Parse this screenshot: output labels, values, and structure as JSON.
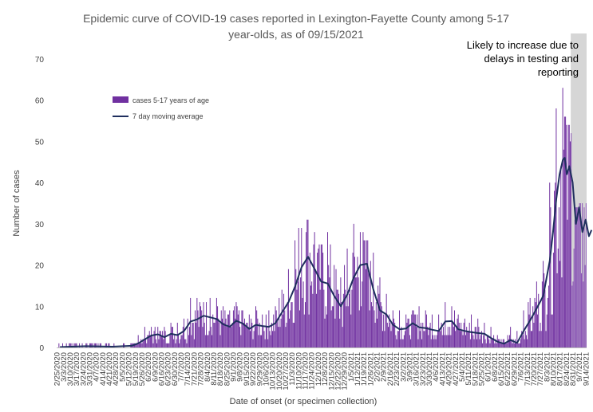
{
  "chart_data": {
    "type": "bar",
    "title": [
      "Epidemic curve of COVID-19 cases reported in Lexington-Fayette County among 5-17",
      "year-olds, as of 09/15/2021"
    ],
    "xlabel": "Date of onset (or specimen collection)",
    "ylabel": "Number of cases",
    "ylim": [
      0,
      70
    ],
    "yticks": [
      0,
      10,
      20,
      30,
      40,
      50,
      60,
      70
    ],
    "x_start": "2020-02-25",
    "x_end": "2021-09-14",
    "x_ticks": [
      "2/25/2020",
      "3/3/2020",
      "3/10/2020",
      "3/17/2020",
      "3/24/2020",
      "3/31/2020",
      "4/7/2020",
      "4/14/2020",
      "4/21/2020",
      "4/28/2020",
      "5/5/2020",
      "5/12/2020",
      "5/19/2020",
      "5/26/2020",
      "6/2/2020",
      "6/9/2020",
      "6/16/2020",
      "6/23/2020",
      "6/30/2020",
      "7/7/2020",
      "7/14/2020",
      "7/21/2020",
      "7/28/2020",
      "8/4/2020",
      "8/11/2020",
      "8/18/2020",
      "8/25/2020",
      "9/1/2020",
      "9/8/2020",
      "9/15/2020",
      "9/22/2020",
      "9/29/2020",
      "10/6/2020",
      "10/13/2020",
      "10/20/2020",
      "10/27/2020",
      "11/3/2020",
      "11/10/2020",
      "11/17/2020",
      "11/24/2020",
      "12/1/2020",
      "12/8/2020",
      "12/15/2020",
      "12/22/2020",
      "12/29/2020",
      "1/5/2021",
      "1/12/2021",
      "1/19/2021",
      "1/26/2021",
      "2/2/2021",
      "2/9/2021",
      "2/16/2021",
      "2/23/2021",
      "3/2/2021",
      "3/9/2021",
      "3/16/2021",
      "3/23/2021",
      "3/30/2021",
      "4/6/2021",
      "4/13/2021",
      "4/20/2021",
      "4/27/2021",
      "5/4/2021",
      "5/11/2021",
      "5/18/2021",
      "5/25/2021",
      "6/1/2021",
      "6/8/2021",
      "6/15/2021",
      "6/22/2021",
      "6/29/2021",
      "7/6/2021",
      "7/13/2021",
      "7/20/2021",
      "7/27/2021",
      "8/3/2021",
      "8/10/2021",
      "8/17/2021",
      "8/24/2021",
      "8/31/2021",
      "9/7/2021",
      "9/14/2021"
    ],
    "series": [
      {
        "name": "cases 5-17 years of age",
        "kind": "bar",
        "color": "#7030a0"
      },
      {
        "name": "7 day moving average",
        "kind": "line",
        "color": "#1f2f5e"
      }
    ],
    "weekly_cases_mean": [
      0.1,
      0.2,
      0.3,
      0.2,
      0.2,
      0.4,
      0.3,
      0.2,
      0.2,
      0.1,
      0.3,
      0.4,
      1.0,
      2.0,
      2.8,
      3.1,
      2.6,
      3.2,
      3.0,
      3.9,
      6.2,
      6.8,
      7.6,
      7.2,
      6.8,
      5.6,
      5.1,
      6.4,
      5.8,
      4.6,
      5.4,
      5.1,
      5.0,
      5.8,
      8.5,
      10.8,
      14.5,
      19.2,
      21.5,
      19.5,
      16.2,
      15.3,
      12.5,
      10.2,
      12.5,
      16.5,
      19.5,
      19.8,
      14.2,
      9.2,
      8.1,
      5.6,
      4.5,
      4.6,
      5.8,
      4.9,
      4.8,
      4.4,
      4.1,
      6.2,
      6.3,
      4.5,
      4.1,
      3.8,
      3.6,
      3.3,
      2.4,
      1.5,
      1.0,
      1.7,
      1.2,
      4.0,
      6.5,
      9.2,
      12.0,
      20.5,
      35.0,
      44.5,
      41.0,
      30.5,
      27.5,
      28.5
    ],
    "weekly_peaks": [
      0,
      1,
      1,
      1,
      1,
      1,
      1,
      0,
      1,
      1,
      1,
      1,
      3,
      5,
      5,
      5,
      5,
      6,
      6,
      7,
      12,
      12,
      11,
      12,
      12,
      10,
      9,
      11,
      9,
      8,
      10,
      8,
      9,
      10,
      14,
      19,
      26,
      29,
      31,
      28,
      25,
      28,
      20,
      17,
      24,
      30,
      28,
      26,
      23,
      17,
      13,
      9,
      9,
      8,
      9,
      10,
      9,
      8,
      8,
      11,
      10,
      8,
      7,
      8,
      7,
      6,
      5,
      3,
      2,
      5,
      4,
      9,
      12,
      16,
      21,
      40,
      58,
      63,
      54,
      34,
      35,
      35
    ],
    "moving_average_points": [
      [
        0,
        0.1
      ],
      [
        4,
        0.3
      ],
      [
        8,
        0.2
      ],
      [
        11,
        0.4
      ],
      [
        12,
        1.0
      ],
      [
        13,
        2.0
      ],
      [
        14,
        2.9
      ],
      [
        15,
        3.2
      ],
      [
        16,
        2.5
      ],
      [
        17,
        3.3
      ],
      [
        18,
        3.0
      ],
      [
        19,
        4.0
      ],
      [
        20,
        6.3
      ],
      [
        21,
        6.8
      ],
      [
        22,
        7.7
      ],
      [
        23,
        7.3
      ],
      [
        24,
        6.9
      ],
      [
        25,
        5.6
      ],
      [
        26,
        5.0
      ],
      [
        27,
        6.5
      ],
      [
        28,
        5.8
      ],
      [
        29,
        4.5
      ],
      [
        30,
        5.5
      ],
      [
        31,
        5.2
      ],
      [
        32,
        5.0
      ],
      [
        33,
        5.9
      ],
      [
        34,
        8.5
      ],
      [
        35,
        11.0
      ],
      [
        36,
        14.8
      ],
      [
        37,
        19.5
      ],
      [
        38,
        22.0
      ],
      [
        39,
        19.0
      ],
      [
        40,
        16.0
      ],
      [
        41,
        15.5
      ],
      [
        42,
        12.5
      ],
      [
        43,
        10.0
      ],
      [
        44,
        12.8
      ],
      [
        45,
        17.0
      ],
      [
        46,
        20.0
      ],
      [
        47,
        20.3
      ],
      [
        48,
        14.0
      ],
      [
        49,
        9.0
      ],
      [
        50,
        8.0
      ],
      [
        51,
        5.5
      ],
      [
        52,
        4.4
      ],
      [
        53,
        4.6
      ],
      [
        54,
        5.9
      ],
      [
        55,
        4.9
      ],
      [
        56,
        4.7
      ],
      [
        57,
        4.3
      ],
      [
        58,
        4.0
      ],
      [
        59,
        6.3
      ],
      [
        60,
        6.4
      ],
      [
        61,
        4.4
      ],
      [
        62,
        4.0
      ],
      [
        63,
        3.7
      ],
      [
        64,
        3.5
      ],
      [
        65,
        3.3
      ],
      [
        66,
        2.3
      ],
      [
        67,
        1.4
      ],
      [
        68,
        0.9
      ],
      [
        69,
        1.8
      ],
      [
        70,
        1.1
      ],
      [
        71,
        4.0
      ],
      [
        72,
        6.6
      ],
      [
        73,
        9.5
      ],
      [
        74,
        12.5
      ],
      [
        75,
        21.0
      ],
      [
        75.5,
        28.0
      ],
      [
        76,
        36.0
      ],
      [
        76.5,
        42.0
      ],
      [
        77,
        45.5
      ],
      [
        77.3,
        46.0
      ],
      [
        77.6,
        42.0
      ],
      [
        78,
        44.0
      ],
      [
        78.5,
        40.0
      ],
      [
        79,
        30.0
      ],
      [
        79.5,
        34.0
      ],
      [
        80,
        28.0
      ],
      [
        80.5,
        31.0
      ],
      [
        81,
        27.0
      ],
      [
        81.4,
        28.5
      ]
    ],
    "annotation": [
      "Likely to increase due to",
      "delays in testing and",
      "reporting"
    ],
    "shaded_region_start": "2021-08-29",
    "legend": "upper-left",
    "grid": false
  }
}
